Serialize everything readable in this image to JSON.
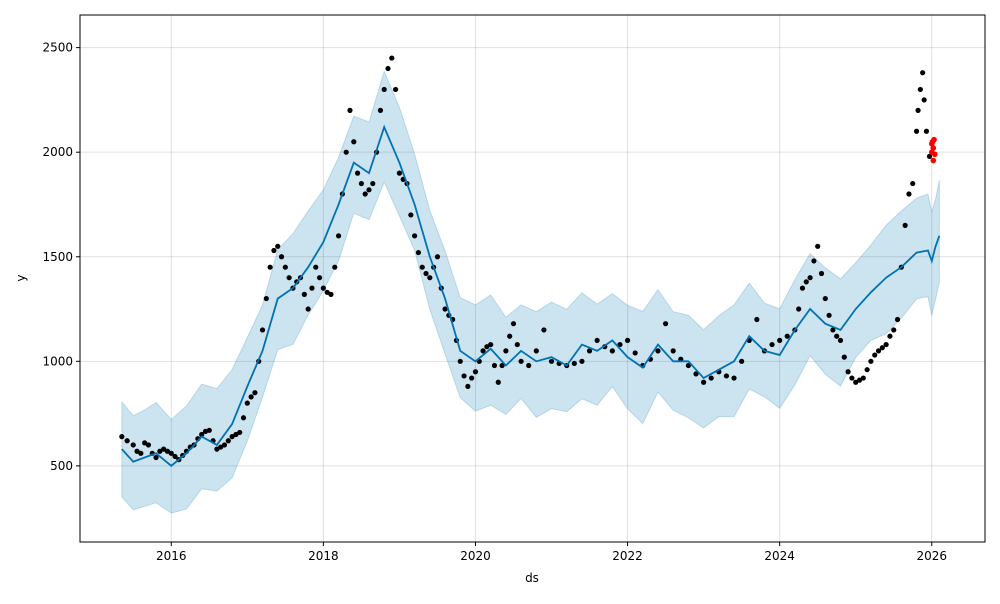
{
  "chart_data": {
    "type": "line",
    "title": "",
    "xlabel": "ds",
    "ylabel": "y",
    "xlim": [
      2014.8,
      2026.7
    ],
    "ylim": [
      136,
      2656
    ],
    "grid": true,
    "x_ticks": [
      2016,
      2018,
      2020,
      2022,
      2024,
      2026
    ],
    "x_tick_labels": [
      "2016",
      "2018",
      "2020",
      "2022",
      "2024",
      "2026"
    ],
    "y_ticks": [
      500,
      1000,
      1500,
      2000,
      2500
    ],
    "y_tick_labels": [
      "500",
      "1000",
      "1500",
      "2000",
      "2500"
    ],
    "colors": {
      "forecast": "#0072B2",
      "interval": "#0072B2",
      "observed": "#000000",
      "test": "#ff0000"
    },
    "interval_halfwidth": 245,
    "observed": [
      [
        2015.35,
        640
      ],
      [
        2015.42,
        620
      ],
      [
        2015.5,
        600
      ],
      [
        2015.55,
        570
      ],
      [
        2015.6,
        560
      ],
      [
        2015.65,
        610
      ],
      [
        2015.7,
        600
      ],
      [
        2015.75,
        560
      ],
      [
        2015.8,
        540
      ],
      [
        2015.85,
        570
      ],
      [
        2015.9,
        580
      ],
      [
        2015.95,
        570
      ],
      [
        2016.0,
        560
      ],
      [
        2016.05,
        545
      ],
      [
        2016.1,
        530
      ],
      [
        2016.15,
        550
      ],
      [
        2016.2,
        570
      ],
      [
        2016.25,
        590
      ],
      [
        2016.3,
        600
      ],
      [
        2016.35,
        630
      ],
      [
        2016.4,
        650
      ],
      [
        2016.45,
        665
      ],
      [
        2016.5,
        670
      ],
      [
        2016.55,
        620
      ],
      [
        2016.6,
        580
      ],
      [
        2016.65,
        590
      ],
      [
        2016.7,
        600
      ],
      [
        2016.75,
        620
      ],
      [
        2016.8,
        640
      ],
      [
        2016.85,
        650
      ],
      [
        2016.9,
        660
      ],
      [
        2016.95,
        730
      ],
      [
        2017.0,
        800
      ],
      [
        2017.05,
        830
      ],
      [
        2017.1,
        850
      ],
      [
        2017.15,
        1000
      ],
      [
        2017.2,
        1150
      ],
      [
        2017.25,
        1300
      ],
      [
        2017.3,
        1450
      ],
      [
        2017.35,
        1530
      ],
      [
        2017.4,
        1550
      ],
      [
        2017.45,
        1500
      ],
      [
        2017.5,
        1450
      ],
      [
        2017.55,
        1400
      ],
      [
        2017.6,
        1350
      ],
      [
        2017.65,
        1380
      ],
      [
        2017.7,
        1400
      ],
      [
        2017.75,
        1320
      ],
      [
        2017.8,
        1250
      ],
      [
        2017.85,
        1350
      ],
      [
        2017.9,
        1450
      ],
      [
        2017.95,
        1400
      ],
      [
        2018.0,
        1350
      ],
      [
        2018.05,
        1330
      ],
      [
        2018.1,
        1320
      ],
      [
        2018.15,
        1450
      ],
      [
        2018.2,
        1600
      ],
      [
        2018.25,
        1800
      ],
      [
        2018.3,
        2000
      ],
      [
        2018.35,
        2200
      ],
      [
        2018.4,
        2050
      ],
      [
        2018.45,
        1900
      ],
      [
        2018.5,
        1850
      ],
      [
        2018.55,
        1800
      ],
      [
        2018.6,
        1820
      ],
      [
        2018.65,
        1850
      ],
      [
        2018.7,
        2000
      ],
      [
        2018.75,
        2200
      ],
      [
        2018.8,
        2300
      ],
      [
        2018.85,
        2400
      ],
      [
        2018.9,
        2450
      ],
      [
        2018.95,
        2300
      ],
      [
        2019.0,
        1900
      ],
      [
        2019.05,
        1870
      ],
      [
        2019.1,
        1850
      ],
      [
        2019.15,
        1700
      ],
      [
        2019.2,
        1600
      ],
      [
        2019.25,
        1520
      ],
      [
        2019.3,
        1450
      ],
      [
        2019.35,
        1420
      ],
      [
        2019.4,
        1400
      ],
      [
        2019.45,
        1450
      ],
      [
        2019.5,
        1500
      ],
      [
        2019.55,
        1350
      ],
      [
        2019.6,
        1250
      ],
      [
        2019.65,
        1220
      ],
      [
        2019.7,
        1200
      ],
      [
        2019.75,
        1100
      ],
      [
        2019.8,
        1000
      ],
      [
        2019.85,
        930
      ],
      [
        2019.9,
        880
      ],
      [
        2019.95,
        920
      ],
      [
        2020.0,
        950
      ],
      [
        2020.05,
        1000
      ],
      [
        2020.1,
        1050
      ],
      [
        2020.15,
        1070
      ],
      [
        2020.2,
        1080
      ],
      [
        2020.25,
        980
      ],
      [
        2020.3,
        900
      ],
      [
        2020.35,
        980
      ],
      [
        2020.4,
        1050
      ],
      [
        2020.45,
        1120
      ],
      [
        2020.5,
        1180
      ],
      [
        2020.55,
        1080
      ],
      [
        2020.6,
        1000
      ],
      [
        2020.7,
        980
      ],
      [
        2020.8,
        1050
      ],
      [
        2020.9,
        1150
      ],
      [
        2021.0,
        1000
      ],
      [
        2021.1,
        990
      ],
      [
        2021.2,
        980
      ],
      [
        2021.3,
        990
      ],
      [
        2021.4,
        1000
      ],
      [
        2021.5,
        1050
      ],
      [
        2021.6,
        1100
      ],
      [
        2021.7,
        1070
      ],
      [
        2021.8,
        1050
      ],
      [
        2021.9,
        1080
      ],
      [
        2022.0,
        1100
      ],
      [
        2022.1,
        1040
      ],
      [
        2022.2,
        980
      ],
      [
        2022.3,
        1010
      ],
      [
        2022.4,
        1050
      ],
      [
        2022.5,
        1180
      ],
      [
        2022.6,
        1050
      ],
      [
        2022.7,
        1010
      ],
      [
        2022.8,
        980
      ],
      [
        2022.9,
        940
      ],
      [
        2023.0,
        900
      ],
      [
        2023.1,
        920
      ],
      [
        2023.2,
        950
      ],
      [
        2023.3,
        930
      ],
      [
        2023.4,
        920
      ],
      [
        2023.5,
        1000
      ],
      [
        2023.6,
        1100
      ],
      [
        2023.7,
        1200
      ],
      [
        2023.8,
        1050
      ],
      [
        2023.9,
        1080
      ],
      [
        2024.0,
        1100
      ],
      [
        2024.1,
        1120
      ],
      [
        2024.2,
        1150
      ],
      [
        2024.25,
        1250
      ],
      [
        2024.3,
        1350
      ],
      [
        2024.35,
        1380
      ],
      [
        2024.4,
        1400
      ],
      [
        2024.45,
        1480
      ],
      [
        2024.5,
        1550
      ],
      [
        2024.55,
        1420
      ],
      [
        2024.6,
        1300
      ],
      [
        2024.65,
        1220
      ],
      [
        2024.7,
        1150
      ],
      [
        2024.75,
        1120
      ],
      [
        2024.8,
        1100
      ],
      [
        2024.85,
        1020
      ],
      [
        2024.9,
        950
      ],
      [
        2024.95,
        920
      ],
      [
        2025.0,
        900
      ],
      [
        2025.05,
        910
      ],
      [
        2025.1,
        920
      ],
      [
        2025.15,
        960
      ],
      [
        2025.2,
        1000
      ],
      [
        2025.25,
        1030
      ],
      [
        2025.3,
        1050
      ],
      [
        2025.35,
        1065
      ],
      [
        2025.4,
        1080
      ],
      [
        2025.45,
        1120
      ],
      [
        2025.5,
        1150
      ],
      [
        2025.55,
        1200
      ],
      [
        2025.6,
        1450
      ],
      [
        2025.65,
        1650
      ],
      [
        2025.7,
        1800
      ],
      [
        2025.75,
        1850
      ],
      [
        2025.8,
        2100
      ],
      [
        2025.82,
        2200
      ],
      [
        2025.85,
        2300
      ],
      [
        2025.88,
        2380
      ],
      [
        2025.9,
        2250
      ],
      [
        2025.93,
        2100
      ],
      [
        2025.97,
        1980
      ]
    ],
    "test": [
      [
        2026.0,
        2000
      ],
      [
        2026.01,
        2050
      ],
      [
        2026.02,
        2020
      ],
      [
        2026.03,
        2060
      ],
      [
        2026.04,
        1990
      ],
      [
        2026.02,
        1960
      ],
      [
        2026.0,
        2040
      ]
    ],
    "forecast": [
      [
        2015.35,
        580
      ],
      [
        2015.5,
        520
      ],
      [
        2015.65,
        540
      ],
      [
        2015.8,
        560
      ],
      [
        2016.0,
        500
      ],
      [
        2016.2,
        560
      ],
      [
        2016.4,
        640
      ],
      [
        2016.6,
        600
      ],
      [
        2016.8,
        700
      ],
      [
        2017.0,
        880
      ],
      [
        2017.2,
        1050
      ],
      [
        2017.4,
        1300
      ],
      [
        2017.6,
        1350
      ],
      [
        2017.8,
        1450
      ],
      [
        2018.0,
        1570
      ],
      [
        2018.2,
        1750
      ],
      [
        2018.4,
        1950
      ],
      [
        2018.6,
        1900
      ],
      [
        2018.8,
        2120
      ],
      [
        2019.0,
        1950
      ],
      [
        2019.2,
        1750
      ],
      [
        2019.4,
        1500
      ],
      [
        2019.6,
        1300
      ],
      [
        2019.8,
        1050
      ],
      [
        2020.0,
        1000
      ],
      [
        2020.2,
        1060
      ],
      [
        2020.4,
        980
      ],
      [
        2020.6,
        1050
      ],
      [
        2020.8,
        1000
      ],
      [
        2021.0,
        1020
      ],
      [
        2021.2,
        980
      ],
      [
        2021.4,
        1080
      ],
      [
        2021.6,
        1050
      ],
      [
        2021.8,
        1100
      ],
      [
        2022.0,
        1020
      ],
      [
        2022.2,
        970
      ],
      [
        2022.4,
        1080
      ],
      [
        2022.6,
        1000
      ],
      [
        2022.8,
        1000
      ],
      [
        2023.0,
        920
      ],
      [
        2023.2,
        960
      ],
      [
        2023.4,
        1000
      ],
      [
        2023.6,
        1120
      ],
      [
        2023.8,
        1050
      ],
      [
        2024.0,
        1030
      ],
      [
        2024.2,
        1150
      ],
      [
        2024.4,
        1250
      ],
      [
        2024.6,
        1180
      ],
      [
        2024.8,
        1150
      ],
      [
        2025.0,
        1250
      ],
      [
        2025.2,
        1330
      ],
      [
        2025.4,
        1400
      ],
      [
        2025.6,
        1450
      ],
      [
        2025.8,
        1520
      ],
      [
        2025.95,
        1530
      ],
      [
        2026.0,
        1480
      ],
      [
        2026.05,
        1550
      ],
      [
        2026.1,
        1600
      ]
    ]
  }
}
